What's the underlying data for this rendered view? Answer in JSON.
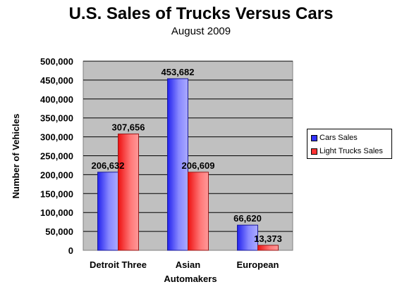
{
  "chart_data": {
    "type": "bar",
    "title": "U.S. Sales of Trucks Versus Cars",
    "subtitle": "August 2009",
    "xlabel": "Automakers",
    "ylabel": "Number of Vehicles",
    "categories": [
      "Detroit Three",
      "Asian",
      "European"
    ],
    "series": [
      {
        "name": "Cars Sales",
        "values": [
          206632,
          453682,
          66620
        ],
        "labels": [
          "206,632",
          "453,682",
          "66,620"
        ],
        "color": "#3333ff"
      },
      {
        "name": "Light Trucks Sales",
        "values": [
          307656,
          206609,
          13373
        ],
        "labels": [
          "307,656",
          "206,609",
          "13,373"
        ],
        "color": "#ff3333"
      }
    ],
    "ylim": [
      0,
      500000
    ],
    "yticks": [
      0,
      50000,
      100000,
      150000,
      200000,
      250000,
      300000,
      350000,
      400000,
      450000,
      500000
    ],
    "ytick_labels": [
      "0",
      "50,000",
      "100,000",
      "150,000",
      "200,000",
      "250,000",
      "300,000",
      "350,000",
      "400,000",
      "450,000",
      "500,000"
    ],
    "grid": true,
    "plot_background": "#c0c0c0",
    "legend_position": "right"
  }
}
